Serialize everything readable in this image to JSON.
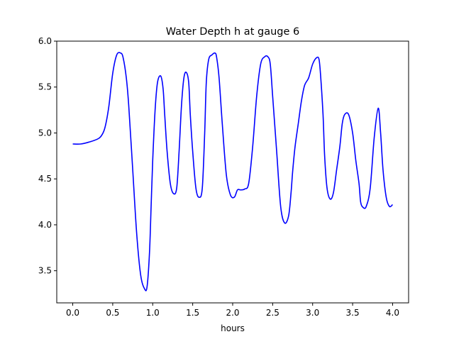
{
  "chart_data": {
    "type": "line",
    "title": "Water Depth h at gauge 6",
    "xlabel": "hours",
    "ylabel": "",
    "xlim": [
      -0.2,
      4.2
    ],
    "ylim": [
      3.15,
      6.0
    ],
    "xticks": [
      0.0,
      0.5,
      1.0,
      1.5,
      2.0,
      2.5,
      3.0,
      3.5,
      4.0
    ],
    "xtick_labels": [
      "0.0",
      "0.5",
      "1.0",
      "1.5",
      "2.0",
      "2.5",
      "3.0",
      "3.5",
      "4.0"
    ],
    "yticks": [
      3.5,
      4.0,
      4.5,
      5.0,
      5.5,
      6.0
    ],
    "ytick_labels": [
      "3.5",
      "4.0",
      "4.5",
      "5.0",
      "5.5",
      "6.0"
    ],
    "grid": false,
    "legend": "none",
    "series": [
      {
        "color": "#0000ff",
        "x": [
          0.0,
          0.1,
          0.2,
          0.3,
          0.35,
          0.4,
          0.45,
          0.5,
          0.55,
          0.6,
          0.63,
          0.67,
          0.7,
          0.75,
          0.8,
          0.85,
          0.9,
          0.93,
          0.96,
          0.98,
          1.0,
          1.03,
          1.06,
          1.1,
          1.13,
          1.15,
          1.18,
          1.22,
          1.26,
          1.3,
          1.33,
          1.36,
          1.39,
          1.42,
          1.45,
          1.47,
          1.5,
          1.54,
          1.58,
          1.62,
          1.65,
          1.67,
          1.7,
          1.74,
          1.78,
          1.8,
          1.83,
          1.87,
          1.92,
          1.97,
          2.02,
          2.06,
          2.1,
          2.15,
          2.2,
          2.25,
          2.3,
          2.35,
          2.4,
          2.44,
          2.47,
          2.5,
          2.55,
          2.6,
          2.65,
          2.7,
          2.73,
          2.75,
          2.78,
          2.82,
          2.86,
          2.9,
          2.95,
          3.0,
          3.05,
          3.08,
          3.1,
          3.13,
          3.15,
          3.18,
          3.22,
          3.26,
          3.3,
          3.34,
          3.37,
          3.4,
          3.45,
          3.5,
          3.54,
          3.58,
          3.6,
          3.63,
          3.67,
          3.72,
          3.77,
          3.82,
          3.85,
          3.88,
          3.92,
          3.96,
          4.0
        ],
        "y": [
          4.88,
          4.88,
          4.9,
          4.93,
          4.96,
          5.05,
          5.28,
          5.65,
          5.85,
          5.87,
          5.82,
          5.6,
          5.3,
          4.6,
          3.9,
          3.45,
          3.3,
          3.33,
          3.7,
          4.2,
          4.7,
          5.25,
          5.55,
          5.62,
          5.48,
          5.2,
          4.8,
          4.45,
          4.34,
          4.4,
          4.8,
          5.3,
          5.6,
          5.66,
          5.55,
          5.2,
          4.8,
          4.4,
          4.3,
          4.4,
          5.0,
          5.55,
          5.8,
          5.85,
          5.87,
          5.82,
          5.6,
          5.1,
          4.55,
          4.33,
          4.3,
          4.38,
          4.38,
          4.39,
          4.45,
          4.85,
          5.4,
          5.75,
          5.83,
          5.83,
          5.75,
          5.4,
          4.8,
          4.2,
          4.02,
          4.1,
          4.35,
          4.58,
          4.85,
          5.1,
          5.35,
          5.52,
          5.6,
          5.75,
          5.82,
          5.8,
          5.62,
          5.2,
          4.75,
          4.4,
          4.28,
          4.35,
          4.6,
          4.85,
          5.1,
          5.2,
          5.2,
          5.0,
          4.7,
          4.45,
          4.25,
          4.19,
          4.2,
          4.4,
          4.95,
          5.27,
          5.0,
          4.6,
          4.3,
          4.2,
          4.22
        ]
      }
    ]
  }
}
